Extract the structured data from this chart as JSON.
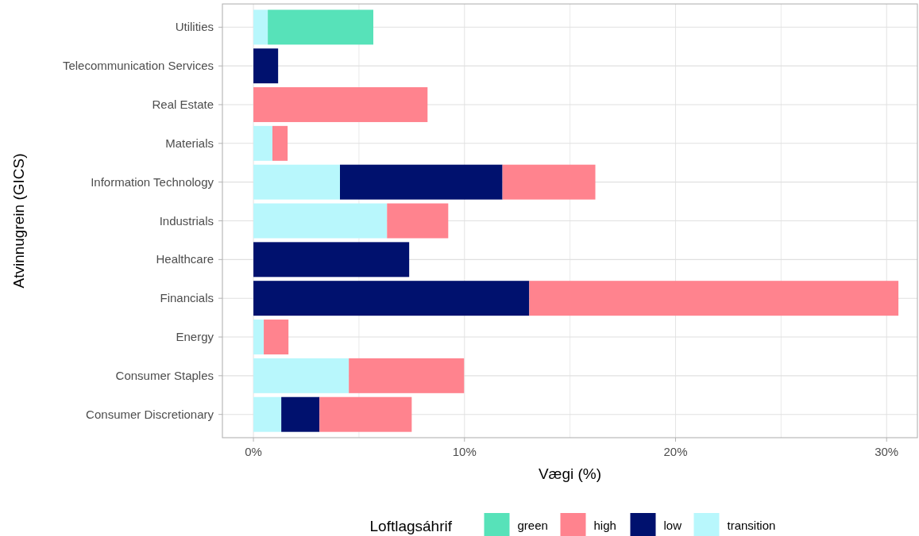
{
  "chart_data": {
    "type": "bar",
    "orientation": "horizontal",
    "stacked": true,
    "xlabel": "Vægi (%)",
    "ylabel": "Atvinnugrein (GICS)",
    "legend_title": "Loftlagsáhrif",
    "legend": "bottom",
    "grid": true,
    "categories": [
      "Utilities",
      "Telecommunication Services",
      "Real Estate",
      "Materials",
      "Information Technology",
      "Industrials",
      "Healthcare",
      "Financials",
      "Energy",
      "Consumer Staples",
      "Consumer Discretionary"
    ],
    "xlim": [
      -1.47,
      31.46
    ],
    "xticks": [
      {
        "value": 0,
        "label": "0%"
      },
      {
        "value": 5,
        "label": null
      },
      {
        "value": 10,
        "label": "10%"
      },
      {
        "value": 15,
        "label": null
      },
      {
        "value": 20,
        "label": "20%"
      },
      {
        "value": 25,
        "label": null
      },
      {
        "value": 30,
        "label": "30%"
      }
    ],
    "series": [
      {
        "name": "transition",
        "color": "#b8f7fc",
        "values": [
          0.68,
          null,
          null,
          0.9,
          4.1,
          6.33,
          null,
          null,
          0.49,
          4.52,
          1.32
        ]
      },
      {
        "name": "low",
        "color": "#00116e",
        "values": [
          null,
          1.17,
          null,
          null,
          7.7,
          null,
          7.38,
          13.07,
          null,
          null,
          1.81
        ]
      },
      {
        "name": "high",
        "color": "#ff838e",
        "values": [
          null,
          null,
          8.25,
          0.72,
          4.4,
          2.9,
          null,
          17.49,
          1.17,
          5.46,
          4.37
        ]
      },
      {
        "name": "green",
        "color": "#57e2b9",
        "values": [
          5.0,
          null,
          null,
          null,
          null,
          null,
          null,
          null,
          null,
          null,
          null
        ]
      }
    ]
  }
}
